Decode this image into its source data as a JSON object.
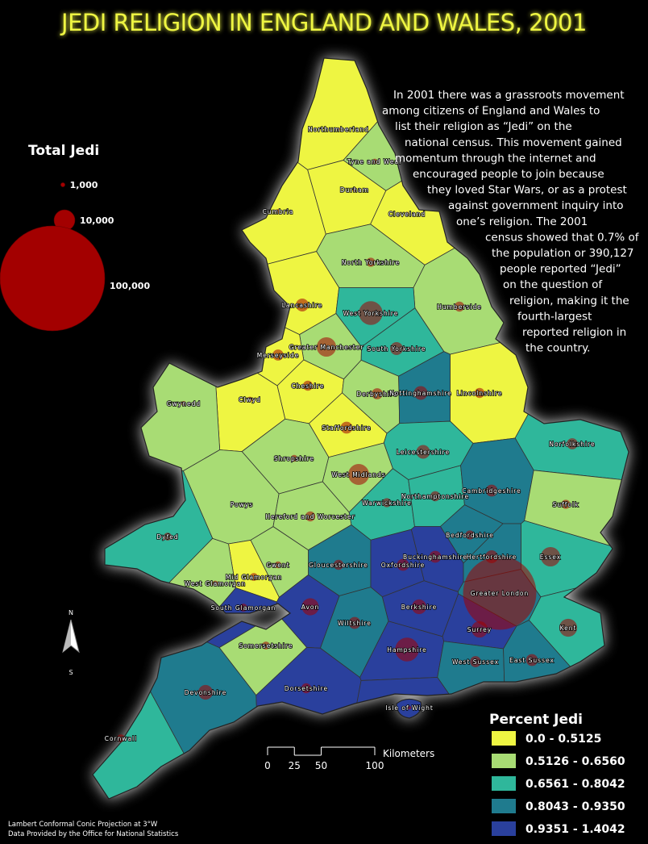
{
  "title": "JEDI RELIGION IN ENGLAND AND WALES, 2001",
  "description": {
    "lines": [
      "In 2001 there was a grassroots movement",
      "among citizens of England and Wales to",
      "list their religion as “Jedi” on the",
      "national census.  This movement gained",
      "momentum through the internet and",
      "encouraged people to join because",
      "they loved Star Wars, or as a protest",
      "against government inquiry into",
      "one’s religion. The 2001",
      "census showed that 0.7% of",
      "the population or 390,127",
      "people reported “Jedi”",
      "on the question of",
      "religion, making it the",
      "fourth-largest",
      "reported religion in",
      "the country."
    ]
  },
  "size_legend": {
    "title": "Total Jedi",
    "color": "#a30000",
    "items": [
      {
        "value": 1000,
        "label": "1,000"
      },
      {
        "value": 10000,
        "label": "10,000"
      },
      {
        "value": 100000,
        "label": "100,000"
      }
    ]
  },
  "class_legend": {
    "title": "Percent Jedi",
    "classes": [
      {
        "label": "0.0 - 0.5125",
        "color": "#eef542"
      },
      {
        "label": "0.5126 - 0.6560",
        "color": "#a8dc74"
      },
      {
        "label": "0.6561 - 0.8042",
        "color": "#2fb79b"
      },
      {
        "label": "0.8043 - 0.9350",
        "color": "#1f7b8e"
      },
      {
        "label": "0.9351 - 1.4042",
        "color": "#2a409d"
      }
    ]
  },
  "counties": [
    {
      "name": "Northumberland",
      "class": 0,
      "jedi": 700
    },
    {
      "name": "Tyne and Wear",
      "class": 1,
      "jedi": 1500
    },
    {
      "name": "Cumbria",
      "class": 0,
      "jedi": 1200
    },
    {
      "name": "Durham",
      "class": 0,
      "jedi": 1200
    },
    {
      "name": "Cleveland",
      "class": 0,
      "jedi": 1000
    },
    {
      "name": "North Yorkshire",
      "class": 1,
      "jedi": 3000
    },
    {
      "name": "Humberside",
      "class": 1,
      "jedi": 3500
    },
    {
      "name": "Lancashire",
      "class": 0,
      "jedi": 5000
    },
    {
      "name": "West Yorkshire",
      "class": 2,
      "jedi": 12000
    },
    {
      "name": "Greater Manchester",
      "class": 1,
      "jedi": 9000
    },
    {
      "name": "South Yorkshire",
      "class": 2,
      "jedi": 5000
    },
    {
      "name": "Merseyside",
      "class": 0,
      "jedi": 4000
    },
    {
      "name": "Lincolnshire",
      "class": 0,
      "jedi": 3500
    },
    {
      "name": "Cheshire",
      "class": 0,
      "jedi": 3500
    },
    {
      "name": "Derbyshire",
      "class": 1,
      "jedi": 4000
    },
    {
      "name": "Nottinghamshire",
      "class": 3,
      "jedi": 5500
    },
    {
      "name": "Clwyd",
      "class": 0,
      "jedi": 1500
    },
    {
      "name": "Gwynedd",
      "class": 1,
      "jedi": 1200
    },
    {
      "name": "Staffordshire",
      "class": 0,
      "jedi": 4500
    },
    {
      "name": "Shropshire",
      "class": 1,
      "jedi": 2000
    },
    {
      "name": "Leicestershire",
      "class": 2,
      "jedi": 5500
    },
    {
      "name": "West Midlands",
      "class": 1,
      "jedi": 10000
    },
    {
      "name": "Norfolkshire",
      "class": 2,
      "jedi": 4000
    },
    {
      "name": "Powys",
      "class": 1,
      "jedi": 600
    },
    {
      "name": "Warwickshire",
      "class": 2,
      "jedi": 3000
    },
    {
      "name": "Northamptonshire",
      "class": 2,
      "jedi": 3500
    },
    {
      "name": "Cambridgeshire",
      "class": 3,
      "jedi": 4500
    },
    {
      "name": "Suffolk",
      "class": 1,
      "jedi": 3000
    },
    {
      "name": "Hereford and Worcester",
      "class": 1,
      "jedi": 3500
    },
    {
      "name": "Dyfed",
      "class": 2,
      "jedi": 2500
    },
    {
      "name": "Bedfordshire",
      "class": 3,
      "jedi": 3000
    },
    {
      "name": "Buckinghamshire",
      "class": 4,
      "jedi": 4500
    },
    {
      "name": "Hertfordshire",
      "class": 3,
      "jedi": 5000
    },
    {
      "name": "Essex",
      "class": 2,
      "jedi": 9000
    },
    {
      "name": "Gloucestershire",
      "class": 3,
      "jedi": 3500
    },
    {
      "name": "Oxfordshire",
      "class": 4,
      "jedi": 4500
    },
    {
      "name": "Gwent",
      "class": 1,
      "jedi": 2000
    },
    {
      "name": "Mid Glamorgan",
      "class": 0,
      "jedi": 2500
    },
    {
      "name": "West Glamorgan",
      "class": 1,
      "jedi": 1500
    },
    {
      "name": "South Glamorgan",
      "class": 4,
      "jedi": 2500
    },
    {
      "name": "Greater London",
      "class": 3,
      "jedi": 60000
    },
    {
      "name": "Avon",
      "class": 4,
      "jedi": 7500
    },
    {
      "name": "Wiltshire",
      "class": 3,
      "jedi": 4500
    },
    {
      "name": "Berkshire",
      "class": 4,
      "jedi": 6000
    },
    {
      "name": "Surrey",
      "class": 4,
      "jedi": 7000
    },
    {
      "name": "Kent",
      "class": 2,
      "jedi": 8000
    },
    {
      "name": "Somersetshire",
      "class": 1,
      "jedi": 2500
    },
    {
      "name": "Hampshire",
      "class": 4,
      "jedi": 12000
    },
    {
      "name": "West Sussex",
      "class": 3,
      "jedi": 4000
    },
    {
      "name": "East Sussex",
      "class": 3,
      "jedi": 4500
    },
    {
      "name": "Devonshire",
      "class": 3,
      "jedi": 6000
    },
    {
      "name": "Dorsetshire",
      "class": 4,
      "jedi": 3500
    },
    {
      "name": "Isle of Wight",
      "class": 4,
      "jedi": 800
    },
    {
      "name": "Cornwall",
      "class": 2,
      "jedi": 2500
    }
  ],
  "scale_bar": {
    "ticks": [
      0,
      25,
      50,
      100
    ],
    "unit": "Kilometers"
  },
  "compass": {
    "north": "N",
    "south": "S"
  },
  "footnotes": [
    "Lambert Conformal Conic Projection at 3°W",
    "Data Provided by the Office for National Statistics"
  ]
}
